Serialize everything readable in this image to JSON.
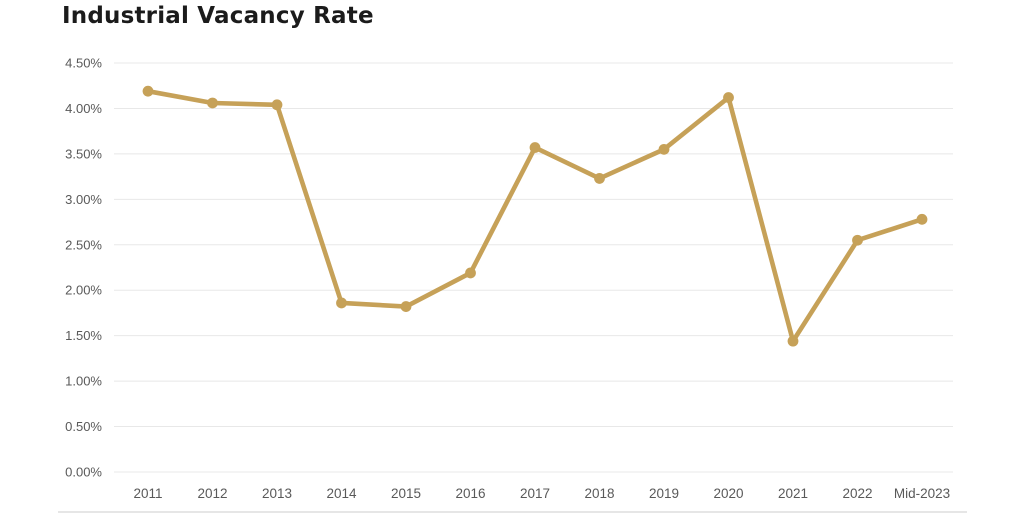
{
  "chart_data": {
    "type": "line",
    "title": "Industrial Vacancy Rate",
    "series_name": "Industrial Vacancy Rate",
    "categories": [
      "2011",
      "2012",
      "2013",
      "2014",
      "2015",
      "2016",
      "2017",
      "2018",
      "2019",
      "2020",
      "2021",
      "2022",
      "Mid-2023"
    ],
    "values": [
      4.19,
      4.06,
      4.04,
      1.86,
      1.82,
      2.19,
      3.57,
      3.23,
      3.55,
      4.12,
      1.44,
      2.55,
      2.78
    ],
    "xlabel": "",
    "ylabel": "",
    "ylim": [
      0,
      4.5
    ],
    "ytick_labels": [
      "0.00%",
      "0.50%",
      "1.00%",
      "1.50%",
      "2.00%",
      "2.50%",
      "3.00%",
      "3.50%",
      "4.00%",
      "4.50%"
    ],
    "grid": "horizontal",
    "legend_position": "none"
  },
  "theme": {
    "line_color": "#C6A158",
    "marker_color": "#C6A158",
    "grid_color": "#E8E8E8",
    "axis_label_color": "#595959",
    "title_color": "#1B1B1B",
    "border_color": "#D8D8D8",
    "background_color": "#FFFFFF"
  }
}
